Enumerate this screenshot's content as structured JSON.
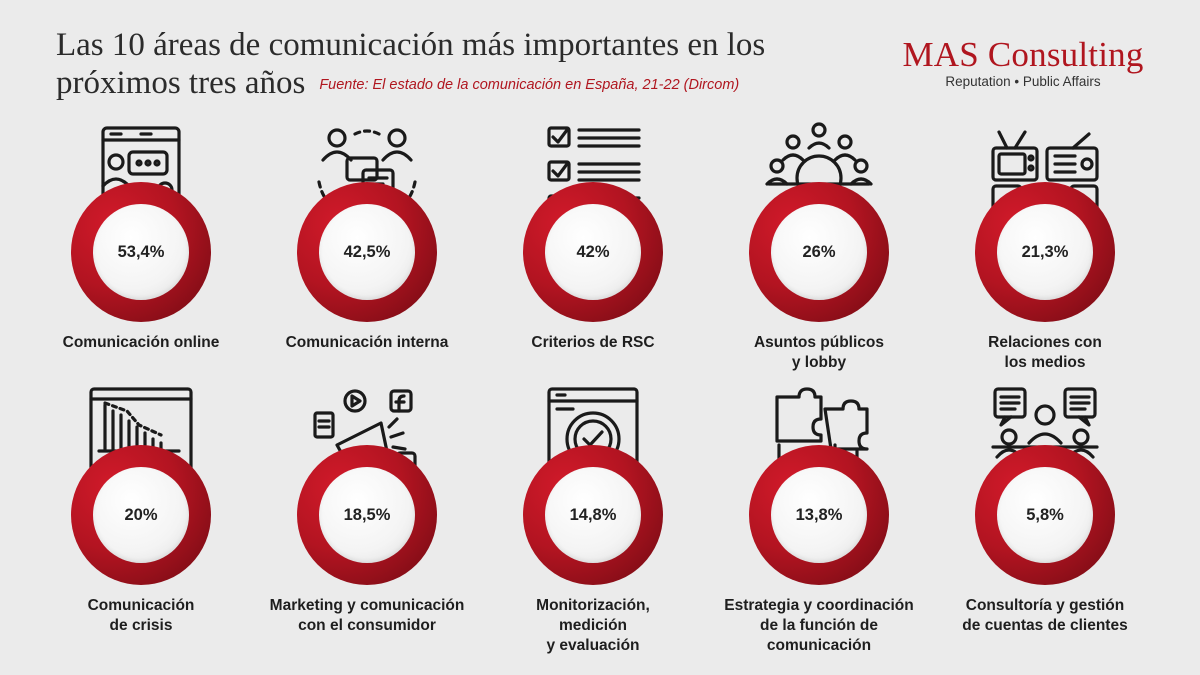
{
  "header": {
    "title_line1": "Las 10 áreas de comunicación más importantes en los",
    "title_line2": "próximos tres años",
    "source": "Fuente: El estado de la comunicación en España, 21-22 (Dircom)"
  },
  "logo": {
    "name": "MAS Consulting",
    "tagline": "Reputation • Public Affairs"
  },
  "colors": {
    "accent": "#b0161f",
    "background": "#ebebeb",
    "text": "#1e1e1e"
  },
  "chart_data": {
    "type": "table",
    "unit": "%",
    "items": [
      {
        "label": "Comunicación online",
        "value": 53.4,
        "display": "53,4%",
        "icon": "online-chat-icon"
      },
      {
        "label": "Comunicación interna",
        "value": 42.5,
        "display": "42,5%",
        "icon": "internal-communication-icon"
      },
      {
        "label": "Criterios de RSC",
        "value": 42,
        "display": "42%",
        "icon": "checklist-icon"
      },
      {
        "label": "Asuntos públicos\ny lobby",
        "value": 26,
        "display": "26%",
        "icon": "group-people-icon"
      },
      {
        "label": "Relaciones con\nlos medios",
        "value": 21.3,
        "display": "21,3%",
        "icon": "media-devices-icon"
      },
      {
        "label": "Comunicación\nde crisis",
        "value": 20,
        "display": "20%",
        "icon": "declining-chart-icon"
      },
      {
        "label": "Marketing y comunicación\ncon el consumidor",
        "value": 18.5,
        "display": "18,5%",
        "icon": "megaphone-icon"
      },
      {
        "label": "Monitorización,\nmedición\ny evaluación",
        "value": 14.8,
        "display": "14,8%",
        "icon": "monitoring-check-icon"
      },
      {
        "label": "Estrategia y coordinación\nde la función de\ncomunicación",
        "value": 13.8,
        "display": "13,8%",
        "icon": "puzzle-icon"
      },
      {
        "label": "Consultoría y gestión\nde cuentas de clientes",
        "value": 5.8,
        "display": "5,8%",
        "icon": "consulting-meeting-icon"
      }
    ]
  }
}
